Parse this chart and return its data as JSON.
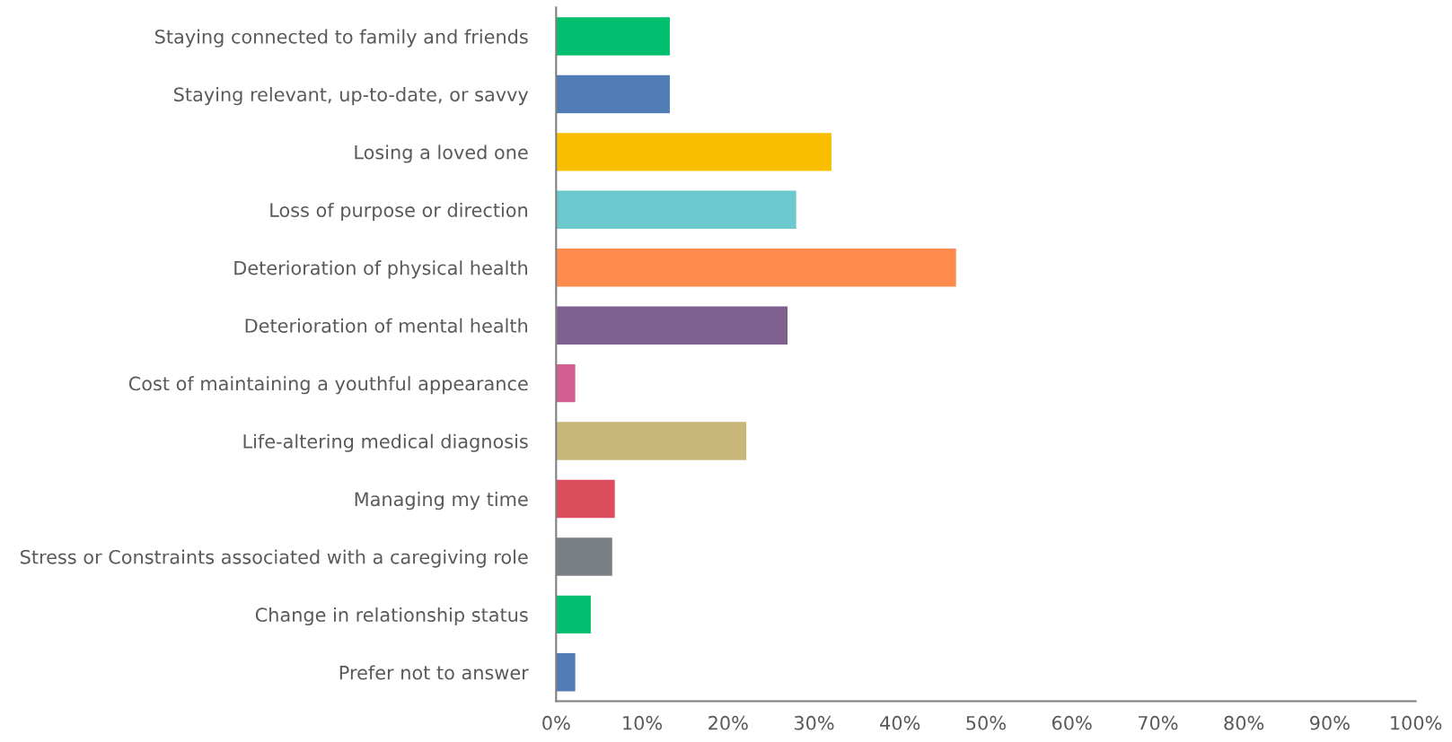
{
  "chart_data": {
    "type": "bar",
    "orientation": "horizontal",
    "categories": [
      "Staying connected to family and friends",
      "Staying relevant, up-to-date, or savvy",
      "Losing a loved one",
      "Loss of purpose or direction",
      "Deterioration of physical health",
      "Deterioration of mental health",
      "Cost of maintaining a youthful appearance",
      "Life-altering medical diagnosis",
      "Managing my time",
      "Stress or Constraints associated with a caregiving role",
      "Change in relationship status",
      "Prefer not to answer"
    ],
    "values": [
      13.3,
      13.3,
      32.1,
      28.0,
      46.6,
      27.0,
      2.3,
      22.2,
      6.9,
      6.6,
      4.1,
      2.3
    ],
    "colors": [
      "#00bf6f",
      "#507cb6",
      "#f9be00",
      "#6bc8cd",
      "#ff8b4f",
      "#7f5f90",
      "#d25f90",
      "#c9b77a",
      "#db4d5c",
      "#7a7f85",
      "#00bf6f",
      "#507cb6"
    ],
    "xlim": [
      0,
      100
    ],
    "xticks": [
      {
        "value": 0,
        "label": "0%"
      },
      {
        "value": 10,
        "label": "10%"
      },
      {
        "value": 20,
        "label": "20%"
      },
      {
        "value": 30,
        "label": "30%"
      },
      {
        "value": 40,
        "label": "40%"
      },
      {
        "value": 50,
        "label": "50%"
      },
      {
        "value": 60,
        "label": "60%"
      },
      {
        "value": 70,
        "label": "70%"
      },
      {
        "value": 80,
        "label": "80%"
      },
      {
        "value": 90,
        "label": "90%"
      },
      {
        "value": 100,
        "label": "100%"
      }
    ],
    "grid": false,
    "legend": false
  }
}
